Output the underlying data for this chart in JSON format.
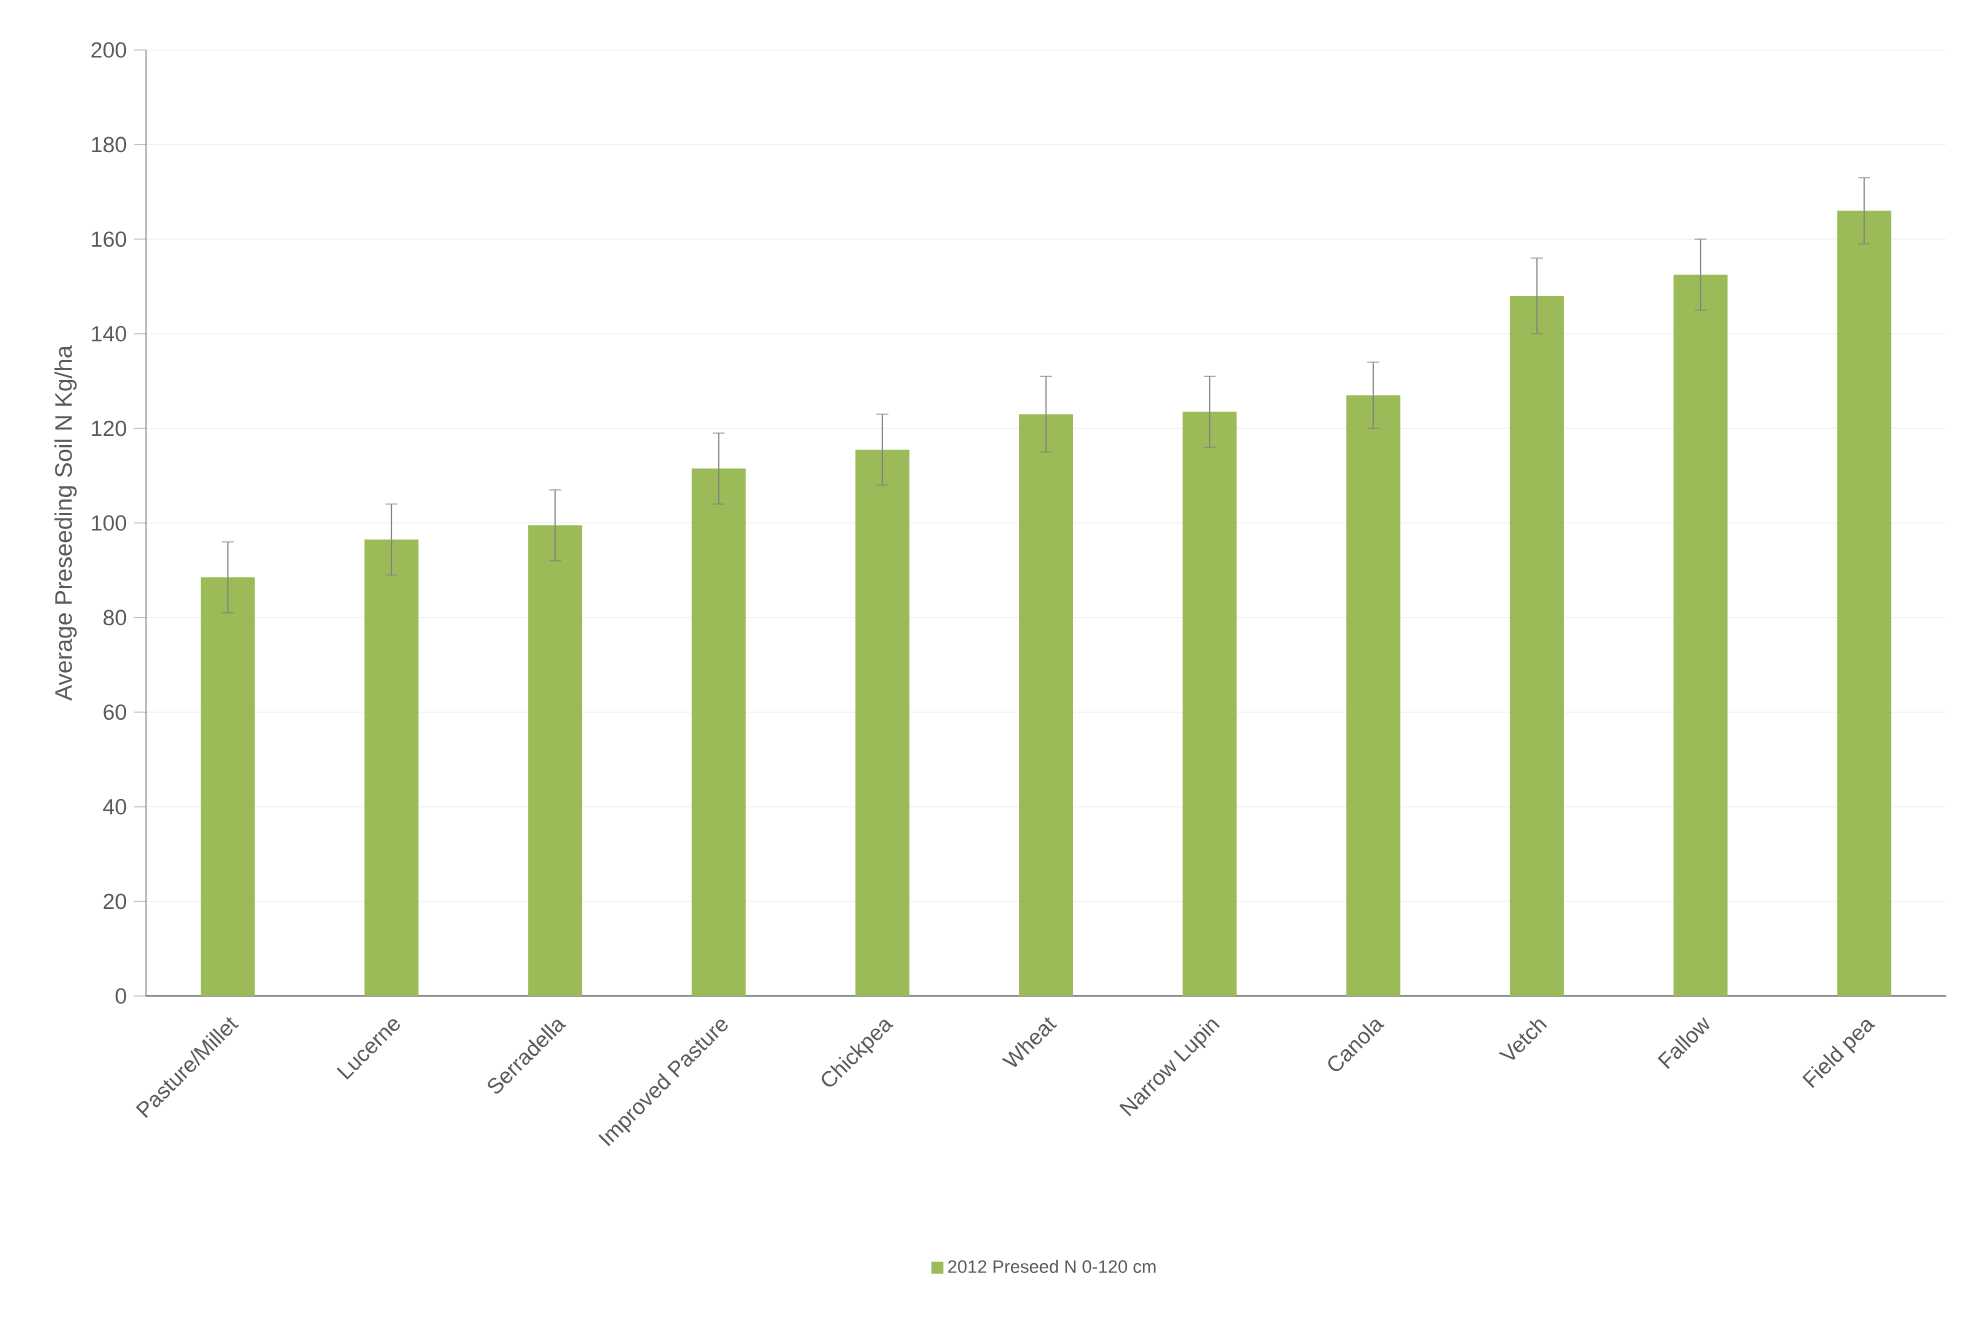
{
  "chart_data": {
    "type": "bar",
    "ylabel": "Average Preseeding Soil N Kg/ha",
    "categories": [
      "Pasture/Millet",
      "Lucerne",
      "Serradella",
      "Improved Pasture",
      "Chickpea",
      "Wheat",
      "Narrow Lupin",
      "Canola",
      "Vetch",
      "Fallow",
      "Field pea"
    ],
    "series": [
      {
        "name": "2012 Preseed N 0-120 cm",
        "color": "#9bbb59",
        "values": [
          88.5,
          96.5,
          99.5,
          111.5,
          115.5,
          123,
          123.5,
          127,
          148,
          152.5,
          166
        ],
        "errors": [
          7.5,
          7.5,
          7.5,
          7.5,
          7.5,
          8,
          7.5,
          7,
          8,
          7.5,
          7
        ]
      }
    ],
    "ylim": [
      0,
      200
    ],
    "yticks": [
      0,
      20,
      40,
      60,
      80,
      100,
      120,
      140,
      160,
      180,
      200
    ],
    "grid": "y",
    "legend": "bottom"
  }
}
